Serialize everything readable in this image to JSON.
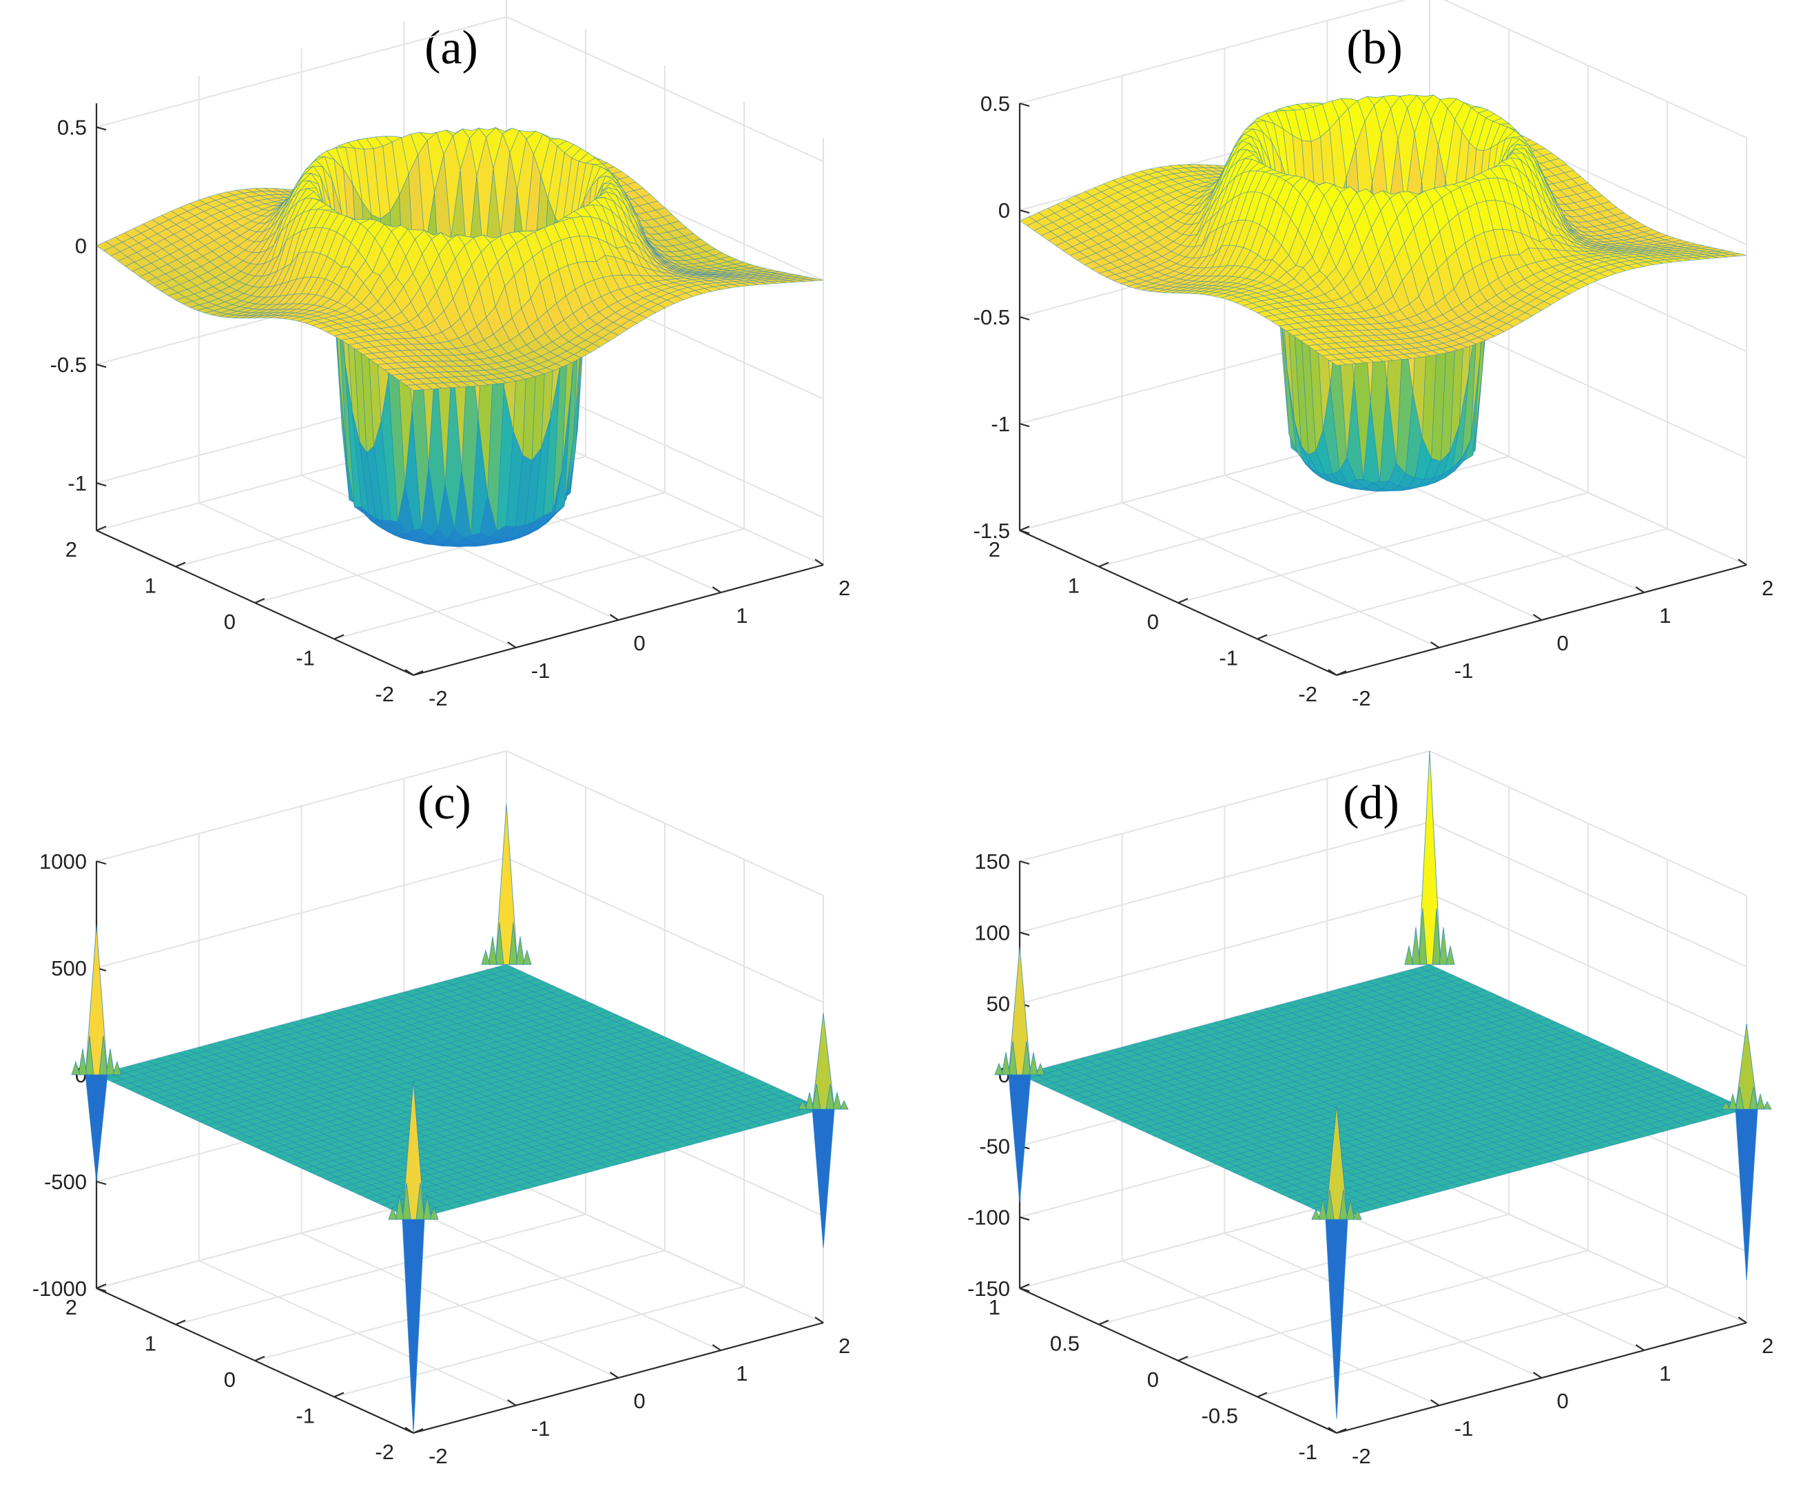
{
  "colors": {
    "low": "#3e26a8",
    "mid_low": "#1f78d1",
    "mid": "#22b2b0",
    "mid_high": "#9bc83b",
    "high": "#f8d43a",
    "top": "#f9fb0e",
    "mesh": "#1f7fc4",
    "grid": "#e3e3e3",
    "axis": "#2b2b2b"
  },
  "chart_data": [
    {
      "panel": "a",
      "title": "(a)",
      "type": "surface",
      "surface": "ring",
      "xlim": [
        -2,
        2
      ],
      "ylim": [
        -2,
        2
      ],
      "zlim": [
        -1.2,
        0.6
      ],
      "x_ticks": [
        "-2",
        "-1",
        "0",
        "1",
        "2"
      ],
      "y_ticks": [
        "-2",
        "-1",
        "0",
        "1",
        "2"
      ],
      "z_ticks": [
        {
          "value": 0.5,
          "label": "0.5"
        },
        {
          "value": 0,
          "label": "0"
        },
        {
          "value": -0.5,
          "label": "-0.5"
        },
        {
          "value": -1,
          "label": "-1"
        }
      ],
      "params": {
        "center_depth": -1.1,
        "core_radius": 0.85,
        "ring_radius": 1.15,
        "ring_height": 0.35,
        "outer_level": 0.0
      }
    },
    {
      "panel": "b",
      "title": "(b)",
      "type": "surface",
      "surface": "ring",
      "xlim": [
        -2,
        2
      ],
      "ylim": [
        -2,
        2
      ],
      "zlim": [
        -1.5,
        0.5
      ],
      "x_ticks": [
        "-2",
        "-1",
        "0",
        "1",
        "2"
      ],
      "y_ticks": [
        "-2",
        "-1",
        "0",
        "1",
        "2"
      ],
      "z_ticks": [
        {
          "value": 0.5,
          "label": "0.5"
        },
        {
          "value": 0,
          "label": "0"
        },
        {
          "value": -0.5,
          "label": "-0.5"
        },
        {
          "value": -1,
          "label": "-1"
        },
        {
          "value": -1.5,
          "label": "-1.5"
        }
      ],
      "params": {
        "center_depth": -1.15,
        "core_radius": 0.7,
        "ring_radius": 1.05,
        "ring_height": 0.45,
        "outer_level": -0.05
      }
    },
    {
      "panel": "c",
      "title": "(c)",
      "type": "surface",
      "surface": "flat-spikes",
      "xlim": [
        -2,
        2
      ],
      "ylim": [
        -2,
        2
      ],
      "zlim": [
        -1000,
        1000
      ],
      "x_ticks": [
        "-2",
        "-1",
        "0",
        "1",
        "2"
      ],
      "y_ticks": [
        "-2",
        "-1",
        "0",
        "1",
        "2"
      ],
      "z_ticks": [
        {
          "value": 1000,
          "label": "1000"
        },
        {
          "value": 500,
          "label": "500"
        },
        {
          "value": 0,
          "label": "0"
        },
        {
          "value": -500,
          "label": "-500"
        },
        {
          "value": -1000,
          "label": "-1000"
        }
      ],
      "spikes": [
        {
          "corner": "back",
          "up": 750,
          "down": 0
        },
        {
          "corner": "left",
          "up": 700,
          "down": -500
        },
        {
          "corner": "right",
          "up": 450,
          "down": -650
        },
        {
          "corner": "front",
          "up": 650,
          "down": -1000
        }
      ]
    },
    {
      "panel": "d",
      "title": "(d)",
      "type": "surface",
      "surface": "flat-spikes",
      "xlim": [
        -2,
        2
      ],
      "ylim": [
        -1,
        1
      ],
      "zlim": [
        -150,
        150
      ],
      "x_ticks": [
        "-2",
        "-1",
        "0",
        "1",
        "2"
      ],
      "y_ticks": [
        "-1",
        "-0.5",
        "0",
        "0.5",
        "1"
      ],
      "z_ticks": [
        {
          "value": 150,
          "label": "150"
        },
        {
          "value": 100,
          "label": "100"
        },
        {
          "value": 50,
          "label": "50"
        },
        {
          "value": 0,
          "label": "0"
        },
        {
          "value": -50,
          "label": "-50"
        },
        {
          "value": -100,
          "label": "-100"
        },
        {
          "value": -150,
          "label": "-150"
        }
      ],
      "spikes": [
        {
          "corner": "back",
          "up": 150,
          "down": 0
        },
        {
          "corner": "left",
          "up": 90,
          "down": -90
        },
        {
          "corner": "right",
          "up": 60,
          "down": -120
        },
        {
          "corner": "front",
          "up": 80,
          "down": -140
        }
      ]
    }
  ]
}
